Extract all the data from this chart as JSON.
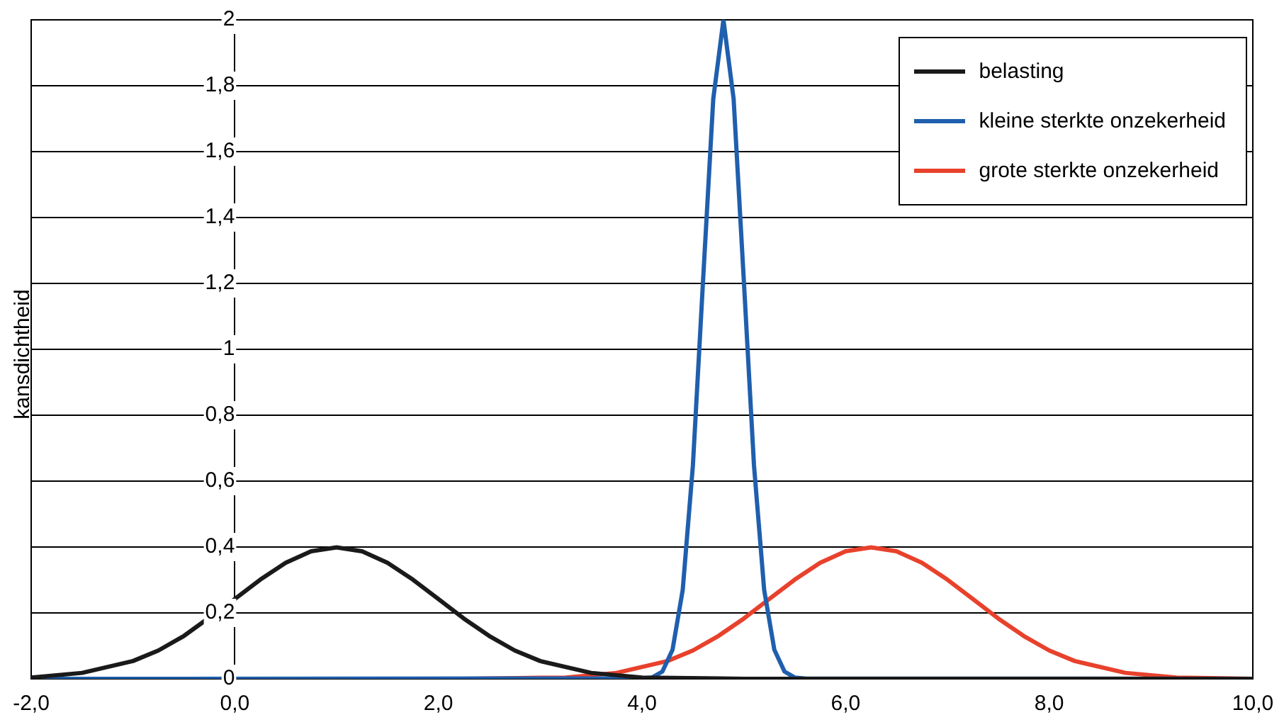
{
  "chart_data": {
    "type": "line",
    "ylabel": "kansdichtheid",
    "xlim": [
      -2,
      10
    ],
    "xticks": [
      {
        "value": -2,
        "label": "-2,0"
      },
      {
        "value": 0,
        "label": "0,0"
      },
      {
        "value": 2,
        "label": "2,0"
      },
      {
        "value": 4,
        "label": "4,0"
      },
      {
        "value": 6,
        "label": "6,0"
      },
      {
        "value": 8,
        "label": "8,0"
      },
      {
        "value": 10,
        "label": "10,0"
      }
    ],
    "ylim": [
      0,
      2
    ],
    "yticks": [
      0,
      {
        "value": 0.2,
        "label": "0,2"
      },
      {
        "value": 0.4,
        "label": "0,4"
      },
      {
        "value": 0.6,
        "label": "0,6"
      },
      {
        "value": 0.8,
        "label": "0,8"
      },
      1,
      {
        "value": 1.2,
        "label": "1,2"
      },
      {
        "value": 1.4,
        "label": "1,4"
      },
      {
        "value": 1.6,
        "label": "1,6"
      },
      {
        "value": 1.8,
        "label": "1,8"
      },
      2
    ],
    "grid": "y",
    "legend": "top right",
    "marker": "none",
    "line_style": "solid",
    "series": [
      {
        "name": "belasting",
        "color": "#1a1a1a",
        "x": [
          -2,
          -1.5,
          -1,
          -0.75,
          -0.5,
          0,
          0.25,
          0.5,
          0.75,
          1,
          1.25,
          1.5,
          1.75,
          2,
          2.25,
          2.5,
          2.75,
          3,
          3.5,
          4,
          5,
          10
        ],
        "values": [
          0.004,
          0.018,
          0.054,
          0.086,
          0.13,
          0.242,
          0.301,
          0.352,
          0.387,
          0.399,
          0.387,
          0.352,
          0.301,
          0.242,
          0.183,
          0.13,
          0.086,
          0.054,
          0.018,
          0.004,
          0,
          0
        ]
      },
      {
        "name": "kleine sterkte onzekerheid",
        "color": "#1f5fad",
        "x": [
          -2,
          4,
          4.1,
          4.2,
          4.3,
          4.4,
          4.5,
          4.6,
          4.7,
          4.8,
          4.9,
          5,
          5.1,
          5.2,
          5.3,
          5.4,
          5.5,
          5.6,
          10
        ],
        "values": [
          0,
          0.001,
          0.004,
          0.022,
          0.088,
          0.27,
          0.648,
          1.21,
          1.76,
          2,
          1.76,
          1.21,
          0.648,
          0.27,
          0.088,
          0.022,
          0.004,
          0.001,
          0
        ]
      },
      {
        "name": "grote sterkte onzekerheid",
        "color": "#e8412c",
        "x": [
          -2,
          2.25,
          3.25,
          3.75,
          4.25,
          4.5,
          4.75,
          5,
          5.25,
          5.5,
          5.75,
          6,
          6.25,
          6.5,
          6.75,
          7,
          7.25,
          7.5,
          7.75,
          8,
          8.25,
          8.75,
          9.25,
          10
        ],
        "values": [
          0,
          0,
          0.004,
          0.018,
          0.054,
          0.086,
          0.13,
          0.183,
          0.242,
          0.301,
          0.352,
          0.387,
          0.399,
          0.387,
          0.352,
          0.301,
          0.242,
          0.183,
          0.13,
          0.086,
          0.054,
          0.018,
          0.004,
          0
        ]
      }
    ]
  }
}
